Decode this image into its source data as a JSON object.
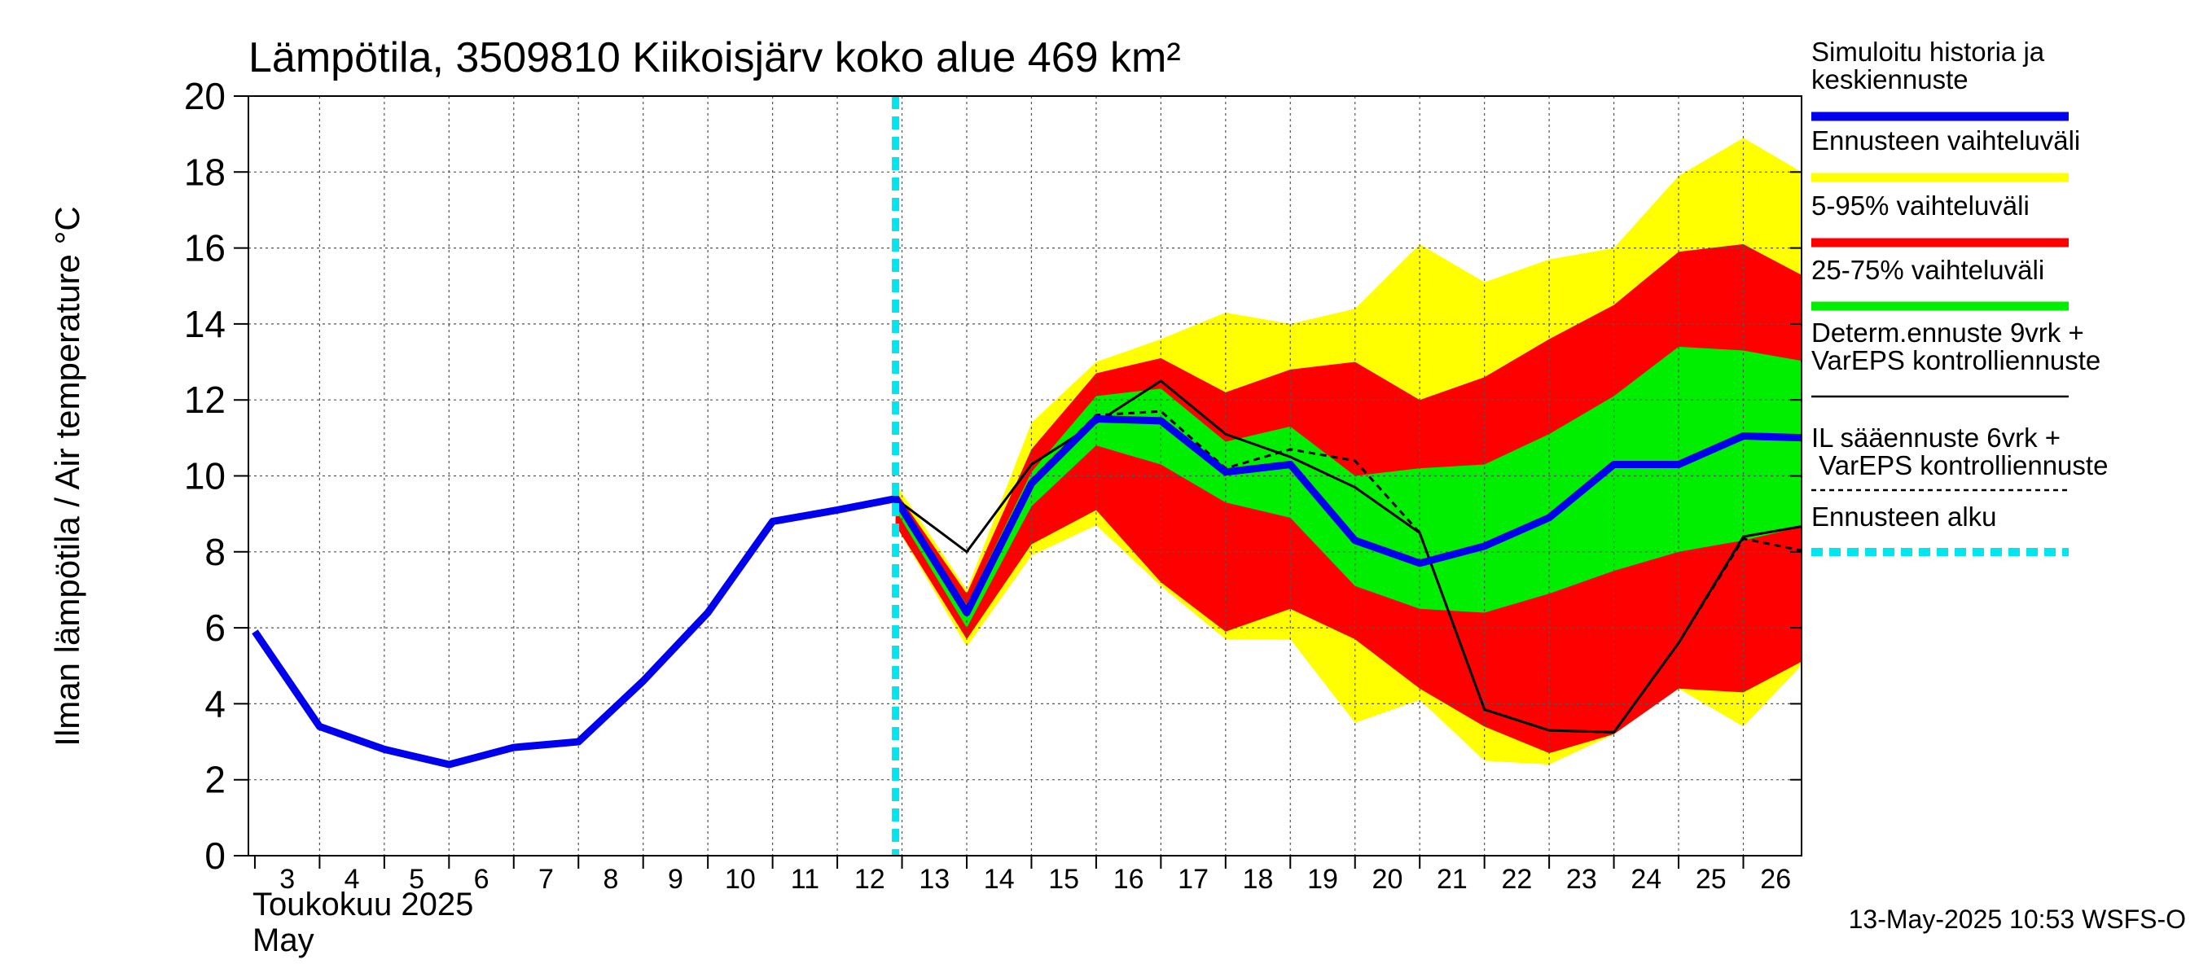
{
  "chart_data": {
    "type": "area",
    "title": "Lämpötila, 3509810 Kiikoisjärv koko alue 469 km²",
    "ylabel": "Ilman lämpötila / Air temperature    °C",
    "ylim": [
      0,
      20
    ],
    "yticks": [
      "0",
      "2",
      "4",
      "6",
      "8",
      "10",
      "12",
      "14",
      "16",
      "18",
      "20"
    ],
    "xticks": [
      "3",
      "4",
      "5",
      "6",
      "7",
      "8",
      "9",
      "10",
      "11",
      "12",
      "13",
      "14",
      "15",
      "16",
      "17",
      "18",
      "19",
      "20",
      "21",
      "22",
      "23",
      "24",
      "25",
      "26"
    ],
    "month_label_fi": "Toukokuu  2025",
    "month_label_en": "May",
    "timestamp": "13-May-2025 10:53 WSFS-O",
    "grid": true,
    "legend_position": "right",
    "colors": {
      "history": "#0000ee",
      "range_full": "#ffff00",
      "range_5_95": "#ff0000",
      "range_25_75": "#00ee00",
      "determ": "#000000",
      "il": "#000000",
      "forecast_start": "#00e5ee"
    },
    "legend": [
      {
        "label": "Simuloitu historia ja\nkeskiennuste",
        "color": "#0000ee",
        "style": "thick"
      },
      {
        "label": "Ennusteen vaihteluväli",
        "color": "#ffff00",
        "style": "thick"
      },
      {
        "label": "5-95% vaihteluväli",
        "color": "#ff0000",
        "style": "thick"
      },
      {
        "label": "25-75% vaihteluväli",
        "color": "#00ee00",
        "style": "thick"
      },
      {
        "label": "Determ.ennuste 9vrk +\nVarEPS kontrolliennuste",
        "color": "#000000",
        "style": "thin"
      },
      {
        "label": "IL sääennuste 6vrk  +\n  VarEPS kontrolliennuste",
        "color": "#000000",
        "style": "dashed"
      },
      {
        "label": "Ennusteen alku",
        "color": "#00e5ee",
        "style": "dotted"
      }
    ],
    "forecast_start_day": 12.9,
    "series": [
      {
        "name": "Simuloitu historia ja keskiennuste",
        "x": [
          3,
          4,
          5,
          6,
          7,
          8,
          9,
          10,
          11,
          12,
          12.9,
          14,
          15,
          16,
          17,
          18,
          19,
          20,
          21,
          22,
          23,
          24,
          25,
          26,
          27
        ],
        "y": [
          5.9,
          3.4,
          2.8,
          2.4,
          2.85,
          3.0,
          4.6,
          6.4,
          8.8,
          9.1,
          9.4,
          6.4,
          9.8,
          11.5,
          11.45,
          10.1,
          10.3,
          8.3,
          7.7,
          8.15,
          8.9,
          10.3,
          10.3,
          11.05,
          11.0
        ]
      },
      {
        "name": "Determ.ennuste 9vrk + VarEPS kontrolliennuste",
        "x": [
          12.9,
          14,
          15,
          16,
          17,
          18,
          19,
          20,
          21,
          22,
          23,
          24,
          25,
          26,
          27
        ],
        "y": [
          9.4,
          8.0,
          10.3,
          11.4,
          12.5,
          11.1,
          10.5,
          9.7,
          8.5,
          3.85,
          3.3,
          3.25,
          5.6,
          8.4,
          8.7
        ]
      },
      {
        "name": "IL sääennuste 6vrk + VarEPS kontrolliennuste",
        "x": [
          12.9,
          14,
          15,
          16,
          17,
          18,
          19,
          20,
          21,
          22,
          23,
          24,
          25,
          26,
          27
        ],
        "y": [
          9.4,
          6.5,
          9.9,
          11.6,
          11.7,
          10.2,
          10.7,
          10.4,
          8.5,
          3.85,
          3.3,
          3.25,
          5.6,
          8.35,
          8.0
        ]
      }
    ],
    "bands": [
      {
        "name": "Ennusteen vaihteluväli",
        "x": [
          12.9,
          14,
          15,
          16,
          17,
          18,
          19,
          20,
          21,
          22,
          23,
          24,
          25,
          26,
          27
        ],
        "upper": [
          9.8,
          7.0,
          11.4,
          13.0,
          13.6,
          14.3,
          14.0,
          14.4,
          16.1,
          15.1,
          15.7,
          16.0,
          17.9,
          18.9,
          17.9
        ],
        "lower": [
          8.7,
          5.5,
          7.9,
          8.7,
          7.1,
          5.7,
          5.7,
          3.5,
          4.1,
          2.5,
          2.4,
          3.2,
          4.4,
          3.4,
          5.2
        ]
      },
      {
        "name": "5-95% vaihteluväli",
        "x": [
          12.9,
          14,
          15,
          16,
          17,
          18,
          19,
          20,
          21,
          22,
          23,
          24,
          25,
          26,
          27
        ],
        "upper": [
          9.6,
          6.9,
          10.7,
          12.7,
          13.1,
          12.2,
          12.8,
          13.0,
          12.0,
          12.6,
          13.6,
          14.5,
          15.9,
          16.1,
          15.2
        ],
        "lower": [
          8.7,
          5.7,
          8.2,
          9.1,
          7.2,
          5.9,
          6.5,
          5.7,
          4.4,
          3.4,
          2.7,
          3.2,
          4.4,
          4.3,
          5.2
        ]
      },
      {
        "name": "25-75% vaihteluväli",
        "x": [
          12.9,
          14,
          15,
          16,
          17,
          18,
          19,
          20,
          21,
          22,
          23,
          24,
          25,
          26,
          27
        ],
        "upper": [
          9.5,
          6.6,
          10.1,
          12.1,
          12.3,
          10.9,
          11.3,
          10.0,
          10.2,
          10.3,
          11.1,
          12.1,
          13.4,
          13.3,
          13.0
        ],
        "lower": [
          9.1,
          6.0,
          9.2,
          10.8,
          10.3,
          9.3,
          8.9,
          7.1,
          6.5,
          6.4,
          6.9,
          7.5,
          8.0,
          8.3,
          8.7
        ]
      }
    ]
  }
}
